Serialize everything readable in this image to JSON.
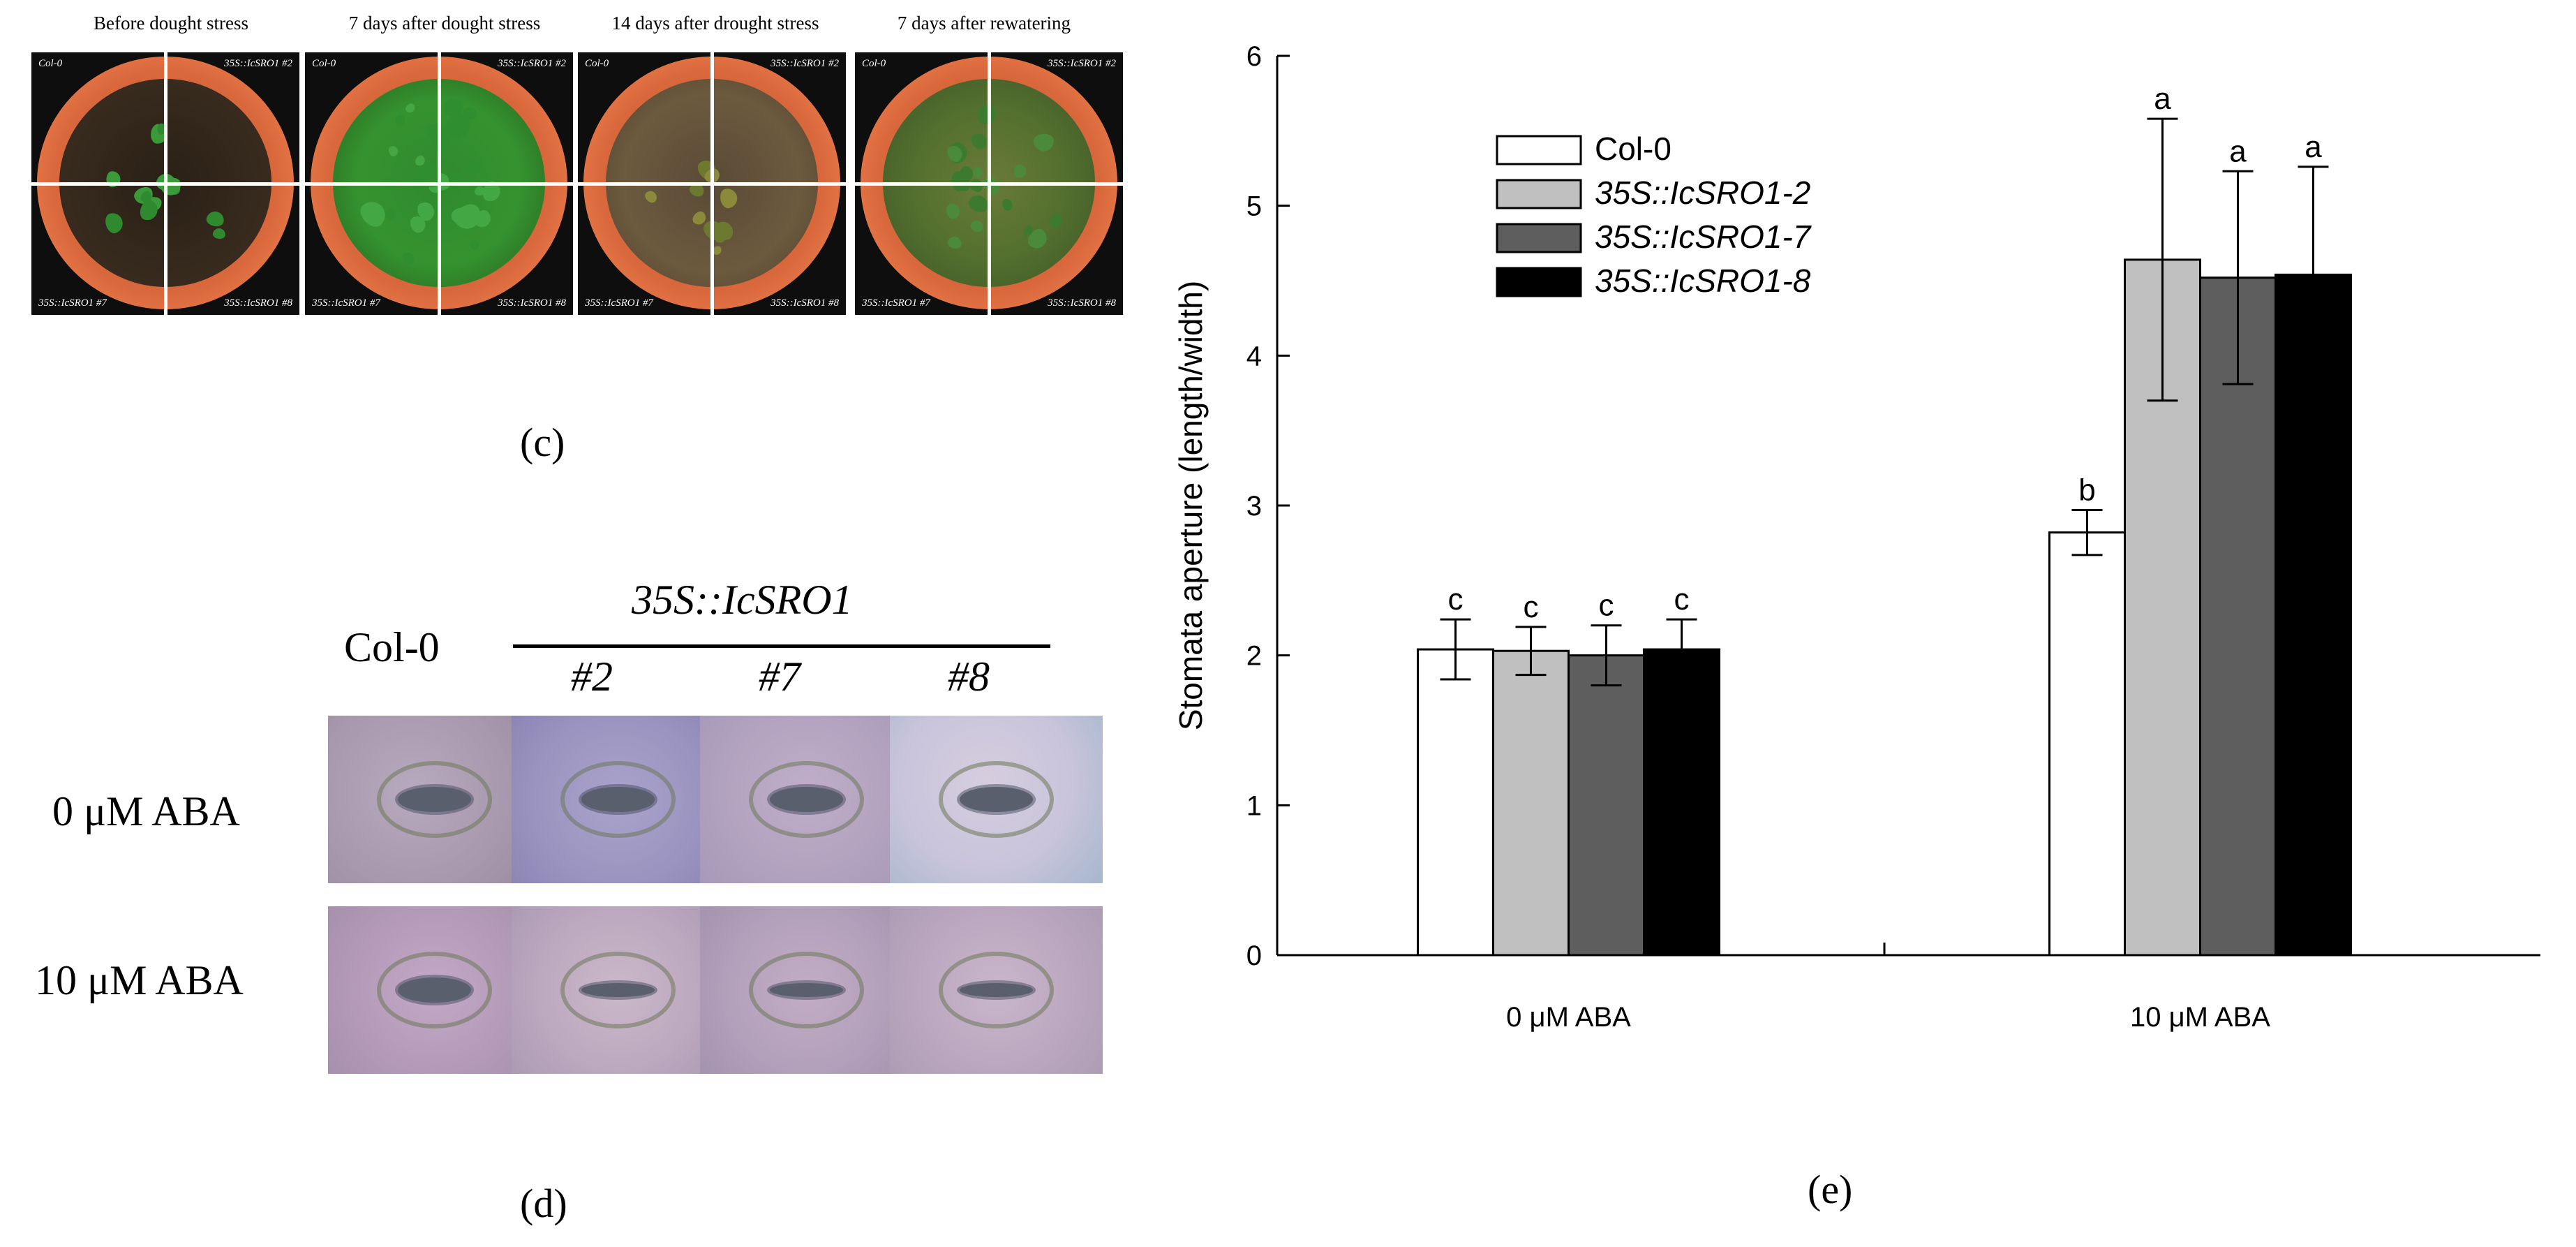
{
  "panel_c": {
    "letter": "(c)",
    "pots": [
      {
        "title": "Before dought stress",
        "labels": [
          "Col-0",
          "35S::IcSRO1 #2",
          "35S::IcSRO1 #7",
          "35S::IcSRO1 #8"
        ]
      },
      {
        "title": "7 days after dought stress",
        "labels": [
          "Col-0",
          "35S::IcSRO1 #2",
          "35S::IcSRO1 #7",
          "35S::IcSRO1 #8"
        ]
      },
      {
        "title": "14 days after drought stress",
        "labels": [
          "Col-0",
          "35S::IcSRO1 #2",
          "35S::IcSRO1 #7",
          "35S::IcSRO1 #8"
        ]
      },
      {
        "title": "7 days after rewatering",
        "labels": [
          "Col-0",
          "35S::IcSRO1 #2",
          "35S::IcSRO1 #7",
          "35S::IcSRO1 #8"
        ]
      }
    ]
  },
  "panel_d": {
    "letter": "(d)",
    "col0": "Col-0",
    "transgene": "35S::IcSRO1",
    "lines": [
      "#2",
      "#7",
      "#8"
    ],
    "rows": [
      "0 μM ABA",
      "10 μM ABA"
    ]
  },
  "panel_e": {
    "letter": "(e)",
    "colors": {
      "Col-0": "#ffffff",
      "35S::IcSRO1-2": "#c0c0c0",
      "35S::IcSRO1-7": "#5e5e5e",
      "35S::IcSRO1-8": "#000000"
    }
  },
  "chart_data": {
    "type": "bar",
    "categories": [
      "0 μM ABA",
      "10 μM ABA"
    ],
    "ylabel": "Stomata aperture (length/width)",
    "ylim": [
      0,
      6
    ],
    "yticks": [
      0,
      1,
      2,
      3,
      4,
      5,
      6
    ],
    "legend_position": "top-left",
    "series": [
      {
        "name": "Col-0",
        "values": [
          2.04,
          2.82
        ],
        "errors": [
          0.2,
          0.15
        ],
        "letters": [
          "c",
          "b"
        ]
      },
      {
        "name": "35S::IcSRO1-2",
        "values": [
          2.03,
          4.64
        ],
        "errors": [
          0.16,
          0.94
        ],
        "letters": [
          "c",
          "a"
        ]
      },
      {
        "name": "35S::IcSRO1-7",
        "values": [
          2.0,
          4.52
        ],
        "errors": [
          0.2,
          0.71
        ],
        "letters": [
          "c",
          "a"
        ]
      },
      {
        "name": "35S::IcSRO1-8",
        "values": [
          2.04,
          4.54
        ],
        "errors": [
          0.2,
          0.72
        ],
        "letters": [
          "c",
          "a"
        ]
      }
    ]
  }
}
